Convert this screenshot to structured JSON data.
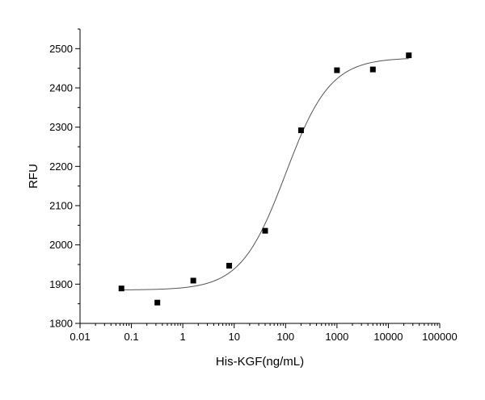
{
  "chart_data": {
    "type": "scatter",
    "title": "",
    "xlabel": "His-KGF(ng/mL)",
    "ylabel": "RFU",
    "x_scale": "log",
    "xlim": [
      0.01,
      100000
    ],
    "ylim": [
      1800,
      2550
    ],
    "x_ticks": [
      "0.01",
      "0.1",
      "1",
      "10",
      "100",
      "1000",
      "10000",
      "100000"
    ],
    "y_ticks": [
      "1800",
      "1900",
      "2000",
      "2100",
      "2200",
      "2300",
      "2400",
      "2500"
    ],
    "grid": false,
    "legend": "none",
    "marker_color": "#000000",
    "curve_color": "#555555",
    "series": [
      {
        "x": [
          0.064,
          0.32,
          1.6,
          8,
          40,
          200,
          1000,
          5000,
          25000
        ],
        "y": [
          1889,
          1853,
          1909,
          1947,
          2036,
          2292,
          2445,
          2447,
          2483
        ]
      }
    ],
    "fit": {
      "model": "4PL",
      "bottom": 1885,
      "top": 2477,
      "ec50": 100,
      "hill": 1.0
    }
  }
}
